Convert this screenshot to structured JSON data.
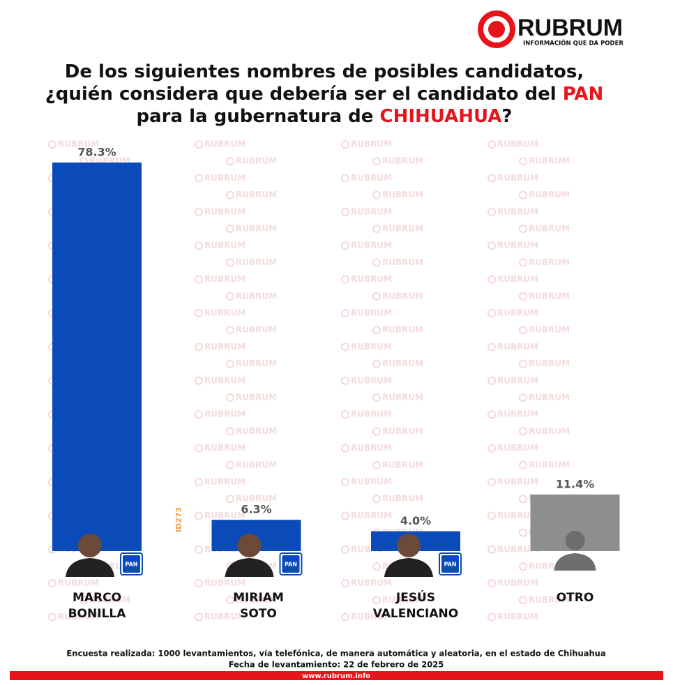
{
  "chart_data": {
    "type": "bar",
    "title": [
      [
        {
          "text": "De los siguientes nombres de posibles candidatos,",
          "color": "#111111"
        }
      ],
      [
        {
          "text": "¿quién considera que debería ser el candidato del ",
          "color": "#111111"
        },
        {
          "text": "PAN",
          "color": "#e8141b"
        }
      ],
      [
        {
          "text": "para la gubernatura de ",
          "color": "#111111"
        },
        {
          "text": "CHIHUAHUA",
          "color": "#e8141b"
        },
        {
          "text": "?",
          "color": "#111111"
        }
      ]
    ],
    "categories": [
      [
        "MARCO",
        "BONILLA"
      ],
      [
        "MIRIAM",
        "SOTO"
      ],
      [
        "JESÚS",
        "VALENCIANO"
      ],
      [
        "OTRO"
      ]
    ],
    "values": [
      78.3,
      6.3,
      4.0,
      11.4
    ],
    "value_labels": [
      "78.3%",
      "6.3%",
      "4.0%",
      "11.4%"
    ],
    "colors": [
      "#0b4ab9",
      "#0b4ab9",
      "#0b4ab9",
      "#8e8e8e"
    ],
    "badge": "PAN",
    "annotation": "ID273",
    "watermark": "RUBRUM",
    "brand": "RUBRUM",
    "tagline": "INFORMACIÓN QUE DA PODER",
    "footnote": [
      "Encuesta realizada: 1000 levantamientos, vía telefónica, de manera automática y aleatoria, en el estado de Chihuahua",
      "Fecha de levantamiento: 22 de febrero de 2025"
    ],
    "url": "www.rubrum.info"
  }
}
